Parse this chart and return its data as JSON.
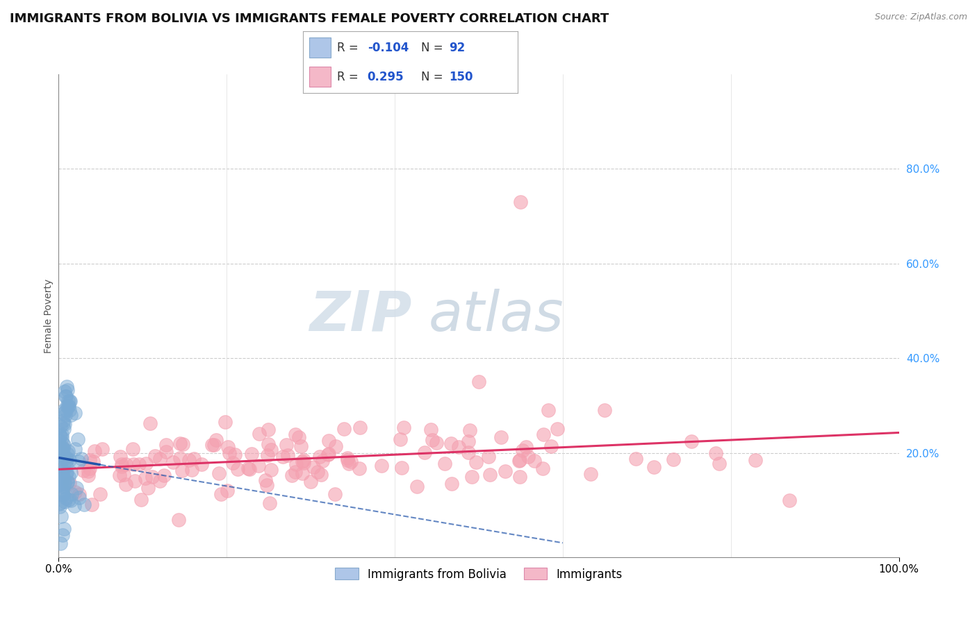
{
  "title": "IMMIGRANTS FROM BOLIVIA VS IMMIGRANTS FEMALE POVERTY CORRELATION CHART",
  "source": "Source: ZipAtlas.com",
  "ylabel": "Female Poverty",
  "legend_label_blue": "Immigrants from Bolivia",
  "legend_label_pink": "Immigrants",
  "R_blue": -0.104,
  "N_blue": 92,
  "R_pink": 0.295,
  "N_pink": 150,
  "color_blue": "#7aaad4",
  "color_pink": "#f4a0b0",
  "color_trendline_blue": "#2255aa",
  "color_trendline_pink": "#dd3366",
  "xlim": [
    0.0,
    1.0
  ],
  "ylim": [
    0.0,
    1.0
  ],
  "yticks": [
    0.2,
    0.4,
    0.6,
    0.8
  ],
  "xtick_positions": [
    0.0,
    1.0
  ],
  "xtick_labels": [
    "0.0%",
    "100.0%"
  ],
  "watermark_zip": "ZIP",
  "watermark_atlas": "atlas",
  "background_color": "#ffffff",
  "grid_color": "#cccccc",
  "title_fontsize": 13,
  "axis_label_fontsize": 10,
  "tick_fontsize": 11,
  "legend_fontsize": 13
}
